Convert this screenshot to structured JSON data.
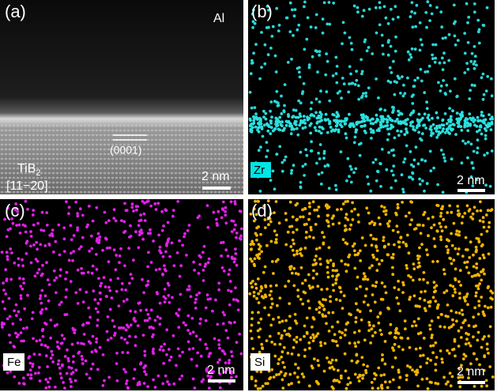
{
  "panels": [
    {
      "label": "(a)",
      "element": "Al",
      "plane": "(0001)",
      "crystal": {
        "base": "TiB",
        "sub": "2"
      },
      "zone": "[11−20]",
      "scale": "2 nm"
    },
    {
      "label": "(b)",
      "element": "Zr",
      "scale": "2 nm"
    },
    {
      "label": "(c)",
      "element": "Fe",
      "scale": "2 nm"
    },
    {
      "label": "(d)",
      "element": "Si",
      "scale": "2 nm"
    }
  ]
}
